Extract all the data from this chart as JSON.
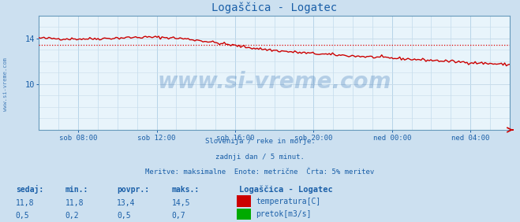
{
  "title": "Logaščica - Logatec",
  "bg_color": "#cce0f0",
  "plot_bg_color": "#e8f4fb",
  "grid_color_v": "#b8d4e8",
  "grid_color_h": "#c8dcea",
  "title_color": "#1a5fa8",
  "axis_label_color": "#1a5fa8",
  "text_color": "#1a5fa8",
  "watermark_text": "www.si-vreme.com",
  "watermark_color": "#1a5fa8",
  "watermark_alpha": 0.25,
  "sub_text1": "Slovenija / reke in morje.",
  "sub_text2": "zadnji dan / 5 minut.",
  "sub_text3": "Meritve: maksimalne  Enote: metrične  Črta: 5% meritev",
  "x_tick_labels": [
    "sob 08:00",
    "sob 12:00",
    "sob 16:00",
    "sob 20:00",
    "ned 00:00",
    "ned 04:00"
  ],
  "x_tick_positions": [
    0.083,
    0.25,
    0.417,
    0.583,
    0.75,
    0.917
  ],
  "ylim": [
    6.0,
    16.0
  ],
  "yticks": [
    10,
    14
  ],
  "yticklabels": [
    "10",
    "14"
  ],
  "temp_avg_line": 13.4,
  "flow_avg_line": 0.5,
  "temp_color": "#cc0000",
  "temp_avg_color": "#dd0000",
  "flow_color": "#00aa00",
  "flow_avg_color": "#009900",
  "border_color": "#6699bb",
  "arrow_color": "#cc0000",
  "legend_title": "Logaščica - Logatec",
  "legend_entries": [
    "temperatura[C]",
    "pretok[m3/s]"
  ],
  "legend_colors": [
    "#cc0000",
    "#00aa00"
  ],
  "table_headers": [
    "sedaj:",
    "min.:",
    "povpr.:",
    "maks.:"
  ],
  "table_temp": [
    "11,8",
    "11,8",
    "13,4",
    "14,5"
  ],
  "table_flow": [
    "0,5",
    "0,2",
    "0,5",
    "0,7"
  ],
  "table_color": "#1a5fa8",
  "left_label": "www.si-vreme.com",
  "n_points": 288
}
